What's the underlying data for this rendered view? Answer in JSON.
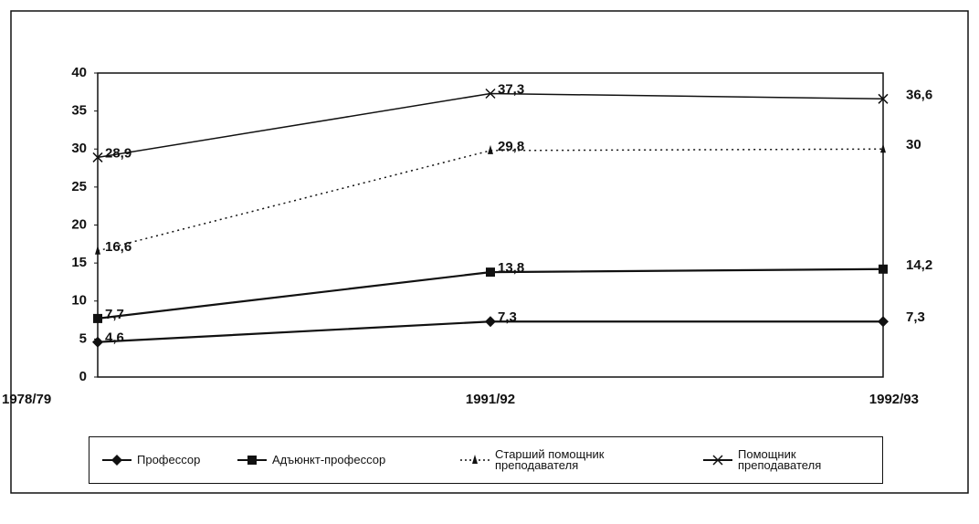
{
  "chart_data": {
    "type": "line",
    "categories": [
      "1978/79",
      "1991/92",
      "1992/93"
    ],
    "series": [
      {
        "name": "Профессор",
        "color": "#111111",
        "marker": "diamond",
        "dash": false,
        "values": [
          4.6,
          7.3,
          7.3
        ],
        "value_labels": [
          "4,6",
          "7,3",
          "7,3"
        ]
      },
      {
        "name": "Адъюнкт-профессор",
        "color": "#111111",
        "marker": "square",
        "dash": false,
        "values": [
          7.7,
          13.8,
          14.2
        ],
        "value_labels": [
          "7,7",
          "13,8",
          "14,2"
        ]
      },
      {
        "name": "Старший помощник преподавателя",
        "color": "#111111",
        "marker": "triangle",
        "dash": true,
        "values": [
          16.6,
          29.8,
          30
        ],
        "value_labels": [
          "16,6",
          "29,8",
          "30"
        ]
      },
      {
        "name": "Помощник преподавателя",
        "color": "#111111",
        "marker": "x",
        "dash": false,
        "values": [
          28.9,
          37.3,
          36.6
        ],
        "value_labels": [
          "28,9",
          "37,3",
          "36,6"
        ]
      }
    ],
    "ylim": [
      0,
      40
    ],
    "yticks": [
      0,
      5,
      10,
      15,
      20,
      25,
      30,
      35,
      40
    ],
    "grid": false
  }
}
